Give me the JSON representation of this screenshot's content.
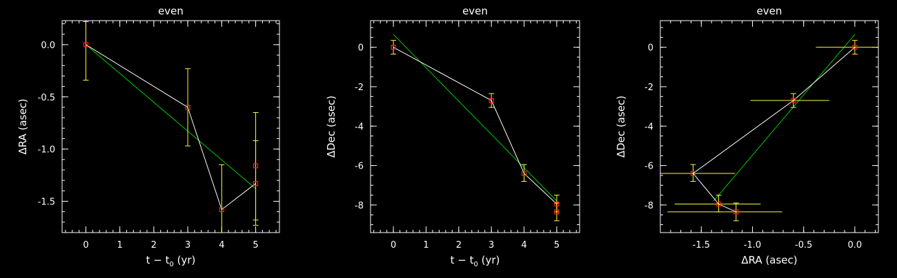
{
  "colors": {
    "background": "#000000",
    "axes": "#ffffff",
    "data_line": "#ffffff",
    "fit_line": "#00cc00",
    "marker": "#ff2020",
    "errorbar": "#ffff33"
  },
  "chart_data": [
    {
      "type": "scatter",
      "title": "even",
      "xlabel_main": "t − t",
      "xlabel_sub": "0",
      "xlabel_tail": " (yr)",
      "ylabel": "ΔRA (asec)",
      "xlim": [
        -0.7,
        5.7
      ],
      "ylim": [
        -1.8,
        0.23
      ],
      "xticks": [
        0,
        1,
        2,
        3,
        4,
        5
      ],
      "xtick_labels": [
        "0",
        "1",
        "2",
        "3",
        "4",
        "5"
      ],
      "yticks": [
        0.0,
        -0.5,
        -1.0,
        -1.5
      ],
      "ytick_labels": [
        "0.0",
        "-0.5",
        "-1.0",
        "-1.5"
      ],
      "x_minor_step": 0.2,
      "y_minor_step": 0.1,
      "points": [
        {
          "x": 0,
          "y": 0.0,
          "yerr_low": -0.34,
          "yerr_high": 0.22
        },
        {
          "x": 3,
          "y": -0.6,
          "yerr_low": -0.97,
          "yerr_high": -0.23
        },
        {
          "x": 4,
          "y": -1.58,
          "yerr_low": -1.8,
          "yerr_high": -1.15
        },
        {
          "x": 5,
          "y": -1.33,
          "yerr_low": -1.73,
          "yerr_high": -0.92
        },
        {
          "x": 5,
          "y": -1.16,
          "yerr_low": -1.68,
          "yerr_high": -0.65
        }
      ],
      "fit_line": [
        [
          0,
          0.0
        ],
        [
          5,
          -1.38
        ]
      ]
    },
    {
      "type": "scatter",
      "title": "even",
      "xlabel_main": "t − t",
      "xlabel_sub": "0",
      "xlabel_tail": " (yr)",
      "ylabel": "ΔDec (asec)",
      "xlim": [
        -0.7,
        5.7
      ],
      "ylim": [
        -9.4,
        1.35
      ],
      "xticks": [
        0,
        1,
        2,
        3,
        4,
        5
      ],
      "xtick_labels": [
        "0",
        "1",
        "2",
        "3",
        "4",
        "5"
      ],
      "yticks": [
        0,
        -2,
        -4,
        -6,
        -8
      ],
      "ytick_labels": [
        "0",
        "-2",
        "-4",
        "-6",
        "-8"
      ],
      "x_minor_step": 0.2,
      "y_minor_step": 0.5,
      "points": [
        {
          "x": 0,
          "y": 0.0,
          "yerr_low": -0.35,
          "yerr_high": 0.35
        },
        {
          "x": 3,
          "y": -2.7,
          "yerr_low": -3.05,
          "yerr_high": -2.35
        },
        {
          "x": 4,
          "y": -6.4,
          "yerr_low": -6.8,
          "yerr_high": -5.95
        },
        {
          "x": 5,
          "y": -7.95,
          "yerr_low": -8.35,
          "yerr_high": -7.5
        },
        {
          "x": 5,
          "y": -8.35,
          "yerr_low": -8.8,
          "yerr_high": -7.9
        }
      ],
      "fit_line": [
        [
          0,
          0.65
        ],
        [
          5,
          -7.8
        ]
      ]
    },
    {
      "type": "scatter",
      "title": "even",
      "xlabel": "ΔRA (asec)",
      "ylabel": "ΔDec (asec)",
      "xlim": [
        -1.9,
        0.23
      ],
      "ylim": [
        -9.4,
        1.35
      ],
      "xticks": [
        -1.5,
        -1.0,
        -0.5,
        0.0
      ],
      "xtick_labels": [
        "-1.5",
        "-1.0",
        "-0.5",
        "0.0"
      ],
      "yticks": [
        0,
        -2,
        -4,
        -6,
        -8
      ],
      "ytick_labels": [
        "0",
        "-2",
        "-4",
        "-6",
        "-8"
      ],
      "x_minor_step": 0.1,
      "y_minor_step": 0.5,
      "points": [
        {
          "x": 0.0,
          "y": 0.0,
          "xerr_low": -0.38,
          "xerr_high": 0.23,
          "yerr_low": -0.35,
          "yerr_high": 0.35
        },
        {
          "x": -0.6,
          "y": -2.7,
          "xerr_low": -1.02,
          "xerr_high": -0.25,
          "yerr_low": -3.05,
          "yerr_high": -2.35
        },
        {
          "x": -1.58,
          "y": -6.4,
          "xerr_low": -1.9,
          "xerr_high": -1.17,
          "yerr_low": -6.8,
          "yerr_high": -5.95
        },
        {
          "x": -1.33,
          "y": -7.95,
          "xerr_low": -1.76,
          "xerr_high": -0.92,
          "yerr_low": -8.35,
          "yerr_high": -7.5
        },
        {
          "x": -1.16,
          "y": -8.35,
          "xerr_low": -1.83,
          "xerr_high": -0.71,
          "yerr_low": -8.8,
          "yerr_high": -7.9
        }
      ],
      "fit_line": [
        [
          0.0,
          0.65
        ],
        [
          -1.38,
          -7.8
        ]
      ]
    }
  ]
}
